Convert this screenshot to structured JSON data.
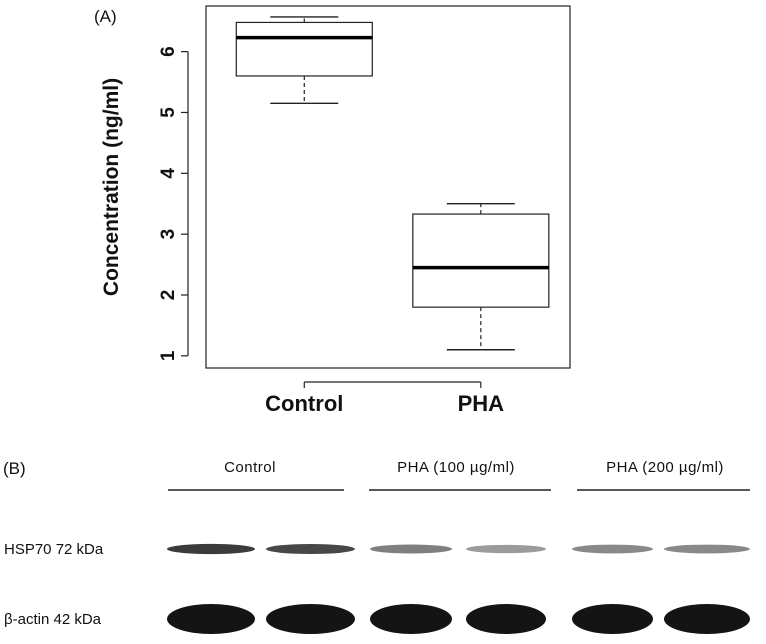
{
  "panel_a": {
    "label": "(A)",
    "chart_data": {
      "type": "box",
      "ylabel": "Concentration (ng/ml)",
      "ylim": [
        0.8,
        6.75
      ],
      "yticks": [
        "1",
        "2",
        "3",
        "4",
        "5",
        "6"
      ],
      "categories": [
        "Control",
        "PHA"
      ],
      "boxes": [
        {
          "category": "Control",
          "min": 5.15,
          "q1": 5.6,
          "median": 6.23,
          "q3": 6.48,
          "max": 6.57
        },
        {
          "category": "PHA",
          "min": 1.1,
          "q1": 1.8,
          "median": 2.45,
          "q3": 3.33,
          "max": 3.5
        }
      ],
      "grid": false
    }
  },
  "panel_b": {
    "label": "(B)",
    "groups": [
      "Control",
      "PHA (100 µg/ml)",
      "PHA (200 µg/ml)"
    ],
    "rows": [
      {
        "label": "HSP70 72 kDa",
        "intensities": [
          0.85,
          0.8,
          0.55,
          0.4,
          0.5,
          0.5
        ]
      },
      {
        "label": "β-actin 42 kDa",
        "intensities": [
          1.0,
          1.0,
          1.0,
          1.0,
          1.0,
          1.0
        ]
      }
    ]
  }
}
